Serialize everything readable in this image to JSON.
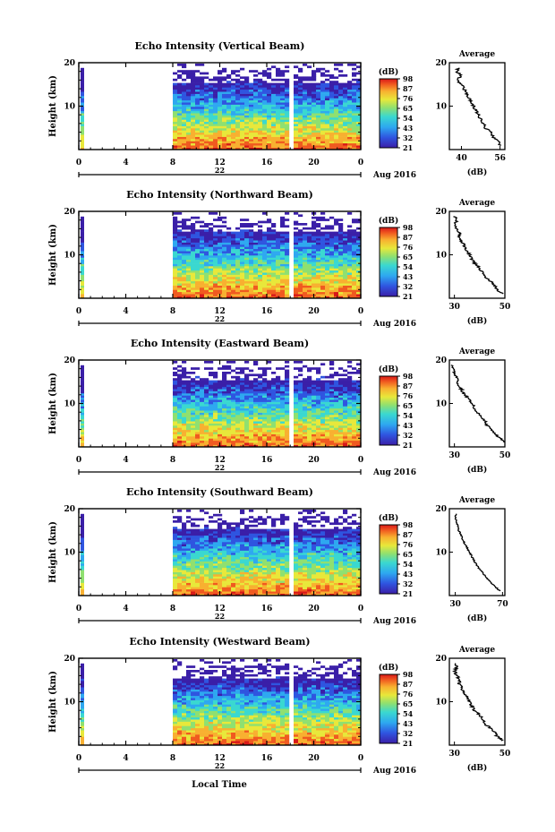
{
  "colors": {
    "colormap": [
      "#3a1fa8",
      "#2f55e0",
      "#2ea8f0",
      "#3ad8d0",
      "#8fe070",
      "#e8e83a",
      "#f8b030",
      "#f05a20",
      "#d81818"
    ],
    "axis": "#000000",
    "background": "#ffffff"
  },
  "figure": {
    "xlabel": "Local Time",
    "date_label": "Aug 2016",
    "x_ticks": [
      "0",
      "4",
      "8",
      "12",
      "16",
      "20",
      "0"
    ],
    "day_label": "22",
    "ylabel": "Height (km)",
    "y_ticks": [
      "20",
      "10"
    ]
  },
  "colorbar": {
    "unit": "(dB)",
    "tick_labels": [
      "98",
      "87",
      "76",
      "65",
      "54",
      "43",
      "32",
      "21"
    ]
  },
  "average_panel": {
    "title": "Average",
    "xlabel": "(dB)"
  },
  "chart_data": [
    {
      "type": "heatmap",
      "title": "Echo Intensity (Vertical Beam)",
      "xlim": [
        0,
        24
      ],
      "ylim": [
        0,
        20
      ],
      "color_range": [
        21,
        98
      ],
      "data_gaps_hours": [
        [
          0.4,
          8
        ],
        [
          17.85,
          18
        ],
        [
          18.45,
          18.6
        ],
        [
          19.6,
          19.75
        ],
        [
          21.0,
          21.25
        ]
      ],
      "average_profile": {
        "xlabel_ticks": [
          "40",
          "56"
        ],
        "xlim": [
          35,
          58
        ],
        "height": [
          1,
          2,
          3,
          4,
          5,
          6,
          7,
          8,
          9,
          10,
          11,
          12,
          13,
          14,
          15,
          16,
          17,
          18,
          19
        ],
        "db": [
          56,
          55,
          53,
          52,
          50,
          49,
          48,
          47,
          46,
          45,
          44,
          43,
          42,
          41,
          40,
          38,
          40,
          38,
          39
        ]
      }
    },
    {
      "type": "heatmap",
      "title": "Echo Intensity (Northward Beam)",
      "xlim": [
        0,
        24
      ],
      "ylim": [
        0,
        20
      ],
      "color_range": [
        21,
        98
      ],
      "data_gaps_hours": [
        [
          0.4,
          8
        ],
        [
          17.85,
          18
        ],
        [
          18.45,
          18.6
        ],
        [
          19.6,
          19.75
        ],
        [
          21.0,
          21.25
        ]
      ],
      "average_profile": {
        "xlabel_ticks": [
          "30",
          "50"
        ],
        "xlim": [
          28,
          50
        ],
        "height": [
          1,
          2,
          3,
          4,
          5,
          6,
          7,
          8,
          9,
          10,
          11,
          12,
          13,
          14,
          15,
          16,
          17,
          18,
          19
        ],
        "db": [
          49,
          47,
          46,
          44,
          42,
          41,
          40,
          38,
          37,
          36,
          35,
          34,
          33,
          32,
          32,
          31,
          30,
          31,
          30
        ]
      }
    },
    {
      "type": "heatmap",
      "title": "Echo Intensity (Eastward Beam)",
      "xlim": [
        0,
        24
      ],
      "ylim": [
        0,
        20
      ],
      "color_range": [
        21,
        98
      ],
      "data_gaps_hours": [
        [
          0.4,
          8
        ],
        [
          17.85,
          18
        ],
        [
          18.45,
          18.6
        ],
        [
          19.6,
          19.75
        ],
        [
          21.0,
          21.25
        ]
      ],
      "average_profile": {
        "xlabel_ticks": [
          "30",
          "50"
        ],
        "xlim": [
          28,
          50
        ],
        "height": [
          1,
          2,
          3,
          4,
          5,
          6,
          7,
          8,
          9,
          10,
          11,
          12,
          13,
          14,
          15,
          16,
          17,
          18,
          19
        ],
        "db": [
          50,
          48,
          46,
          45,
          43,
          42,
          41,
          39,
          38,
          37,
          36,
          34,
          33,
          32,
          31,
          31,
          30,
          30,
          29
        ]
      }
    },
    {
      "type": "heatmap",
      "title": "Echo Intensity (Southward Beam)",
      "xlim": [
        0,
        24
      ],
      "ylim": [
        0,
        20
      ],
      "color_range": [
        21,
        98
      ],
      "data_gaps_hours": [
        [
          0.4,
          8
        ],
        [
          17.85,
          18
        ],
        [
          18.45,
          18.6
        ],
        [
          19.6,
          19.75
        ],
        [
          21.0,
          21.25
        ]
      ],
      "average_profile": {
        "xlabel_ticks": [
          "30",
          "70"
        ],
        "xlim": [
          25,
          72
        ],
        "height": [
          1,
          2,
          3,
          4,
          5,
          6,
          7,
          8,
          9,
          10,
          11,
          12,
          13,
          14,
          15,
          16,
          17,
          18,
          19
        ],
        "db": [
          68,
          64,
          60,
          57,
          54,
          51,
          48,
          46,
          44,
          42,
          40,
          38,
          36,
          35,
          33,
          32,
          31,
          30,
          31
        ]
      }
    },
    {
      "type": "heatmap",
      "title": "Echo Intensity (Westward Beam)",
      "xlim": [
        0,
        24
      ],
      "ylim": [
        0,
        20
      ],
      "color_range": [
        21,
        98
      ],
      "data_gaps_hours": [
        [
          0.4,
          8
        ],
        [
          17.85,
          18
        ],
        [
          18.45,
          18.6
        ],
        [
          19.6,
          19.75
        ],
        [
          21.0,
          21.25
        ]
      ],
      "average_profile": {
        "xlabel_ticks": [
          "30",
          "50"
        ],
        "xlim": [
          28,
          50
        ],
        "height": [
          1,
          2,
          3,
          4,
          5,
          6,
          7,
          8,
          9,
          10,
          11,
          12,
          13,
          14,
          15,
          16,
          17,
          18,
          19
        ],
        "db": [
          49,
          47,
          46,
          44,
          42,
          41,
          40,
          38,
          37,
          36,
          35,
          34,
          33,
          32,
          32,
          31,
          30,
          31,
          30
        ]
      }
    }
  ]
}
